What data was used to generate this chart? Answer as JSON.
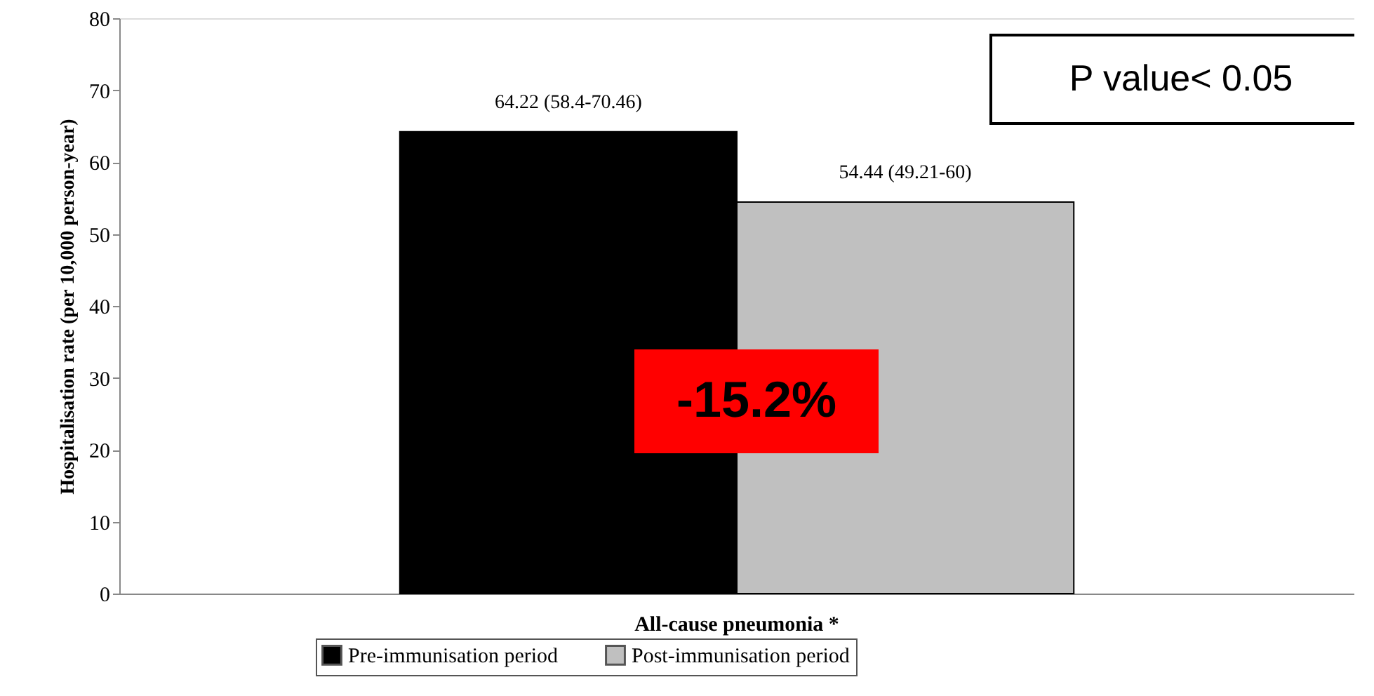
{
  "chart_data": {
    "type": "bar",
    "ylabel": "Hospitalisation rate (per 10,000 person-year)",
    "categories": [
      "All-cause pneumonia *"
    ],
    "series": [
      {
        "name": "Pre-immunisation period",
        "color": "#000000",
        "values": [
          64.22
        ],
        "value_labels": [
          "64.22 (58.4-70.46)"
        ]
      },
      {
        "name": "Post-immunisation period",
        "color": "#c0c0c0",
        "values": [
          54.44
        ],
        "value_labels": [
          "54.44 (49.21-60)"
        ]
      }
    ],
    "ylim": [
      0,
      80
    ],
    "yticks": [
      0,
      10,
      20,
      30,
      40,
      50,
      60,
      70,
      80
    ],
    "grid": false,
    "legend": "bottom",
    "annotations": [
      "P value< 0.05",
      "-15.2%"
    ]
  }
}
